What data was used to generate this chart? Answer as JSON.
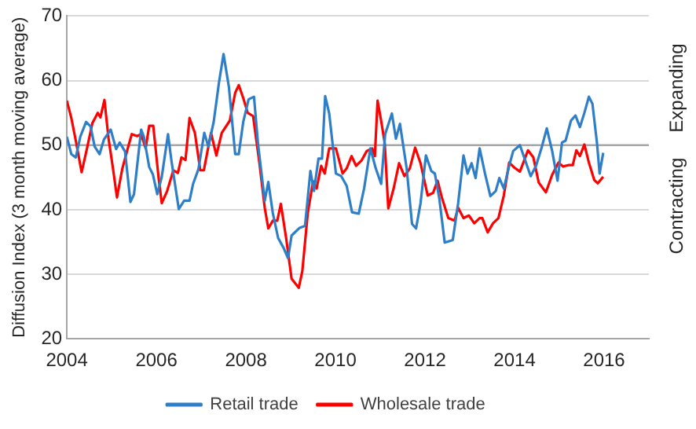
{
  "chart_data": {
    "type": "line",
    "ylabel": "Diffusion Index (3 month moving average)",
    "xlim": [
      2004,
      2017
    ],
    "xticks": [
      2004,
      2006,
      2008,
      2010,
      2012,
      2014,
      2016
    ],
    "ylim": [
      20,
      70
    ],
    "yticks": [
      20,
      30,
      40,
      50,
      60,
      70
    ],
    "grid": "y",
    "legend": "bottom",
    "marker": "none",
    "line_style": "solid",
    "ref_lines": [
      {
        "axis": "y",
        "value": 50,
        "color": "#a6a6a6"
      }
    ],
    "annotations": [
      "Expanding",
      "Contracting"
    ],
    "series": [
      {
        "name": "Retail trade",
        "color": "#2e7fc7",
        "x": [
          2004.0,
          2004.1,
          2004.2,
          2004.3,
          2004.43,
          2004.53,
          2004.62,
          2004.73,
          2004.83,
          2004.98,
          2005.1,
          2005.18,
          2005.3,
          2005.42,
          2005.5,
          2005.66,
          2005.72,
          2005.84,
          2005.92,
          2006.02,
          2006.12,
          2006.26,
          2006.34,
          2006.5,
          2006.62,
          2006.74,
          2006.82,
          2006.94,
          2007.07,
          2007.16,
          2007.28,
          2007.4,
          2007.5,
          2007.62,
          2007.76,
          2007.84,
          2007.94,
          2008.06,
          2008.18,
          2008.27,
          2008.42,
          2008.5,
          2008.6,
          2008.72,
          2008.84,
          2008.94,
          2009.02,
          2009.2,
          2009.32,
          2009.44,
          2009.52,
          2009.62,
          2009.7,
          2009.77,
          2009.86,
          2010.01,
          2010.13,
          2010.25,
          2010.37,
          2010.52,
          2010.64,
          2010.78,
          2010.9,
          2011.02,
          2011.11,
          2011.26,
          2011.35,
          2011.44,
          2011.59,
          2011.71,
          2011.8,
          2011.9,
          2012.02,
          2012.14,
          2012.22,
          2012.32,
          2012.44,
          2012.62,
          2012.74,
          2012.86,
          2012.95,
          2013.04,
          2013.13,
          2013.22,
          2013.34,
          2013.46,
          2013.58,
          2013.66,
          2013.76,
          2013.88,
          2013.97,
          2014.12,
          2014.24,
          2014.36,
          2014.48,
          2014.6,
          2014.72,
          2014.84,
          2014.96,
          2015.06,
          2015.14,
          2015.26,
          2015.36,
          2015.46,
          2015.56,
          2015.66,
          2015.74,
          2015.84,
          2015.9,
          2015.98
        ],
        "values": [
          51.3,
          48.6,
          48.1,
          51.3,
          53.6,
          52.9,
          49.8,
          48.6,
          50.9,
          52.4,
          49.4,
          50.4,
          49,
          41.2,
          42.4,
          52.4,
          51.3,
          46.6,
          45.5,
          42.4,
          45.1,
          51.7,
          47.4,
          40.1,
          41.4,
          41.4,
          44,
          46.3,
          51.9,
          49.8,
          53.6,
          59.8,
          64.1,
          59,
          48.6,
          48.6,
          53.6,
          57.1,
          57.5,
          50.2,
          41.4,
          44.3,
          39.5,
          35.6,
          34.1,
          32.5,
          36,
          37.2,
          37.5,
          46,
          42.9,
          47.9,
          47.9,
          57.6,
          54.9,
          45.6,
          45.2,
          43.7,
          39.6,
          39.4,
          43.3,
          49.5,
          46.4,
          44,
          51.7,
          54.9,
          51,
          53.3,
          46.4,
          37.8,
          37.1,
          41,
          48.4,
          46,
          45.6,
          41.7,
          34.9,
          35.3,
          41,
          48.4,
          45.6,
          47.2,
          44.9,
          49.5,
          45.6,
          42.1,
          42.9,
          44.9,
          43.3,
          46.8,
          49.1,
          50,
          47.6,
          45.2,
          46.8,
          49.5,
          52.6,
          49.1,
          44.5,
          50.4,
          50.7,
          53.8,
          54.6,
          52.8,
          55,
          57.5,
          56.4,
          50.4,
          45.6,
          48.8
        ]
      },
      {
        "name": "Wholesale trade",
        "color": "#ff0000",
        "x": [
          2004.0,
          2004.1,
          2004.2,
          2004.33,
          2004.45,
          2004.57,
          2004.69,
          2004.75,
          2004.84,
          2004.93,
          2005.03,
          2005.12,
          2005.24,
          2005.36,
          2005.45,
          2005.57,
          2005.66,
          2005.76,
          2005.84,
          2005.93,
          2006.05,
          2006.12,
          2006.24,
          2006.38,
          2006.48,
          2006.56,
          2006.65,
          2006.74,
          2006.86,
          2006.98,
          2007.06,
          2007.22,
          2007.34,
          2007.46,
          2007.64,
          2007.76,
          2007.84,
          2007.94,
          2008.04,
          2008.16,
          2008.3,
          2008.42,
          2008.5,
          2008.6,
          2008.7,
          2008.78,
          2008.9,
          2009.02,
          2009.18,
          2009.26,
          2009.38,
          2009.5,
          2009.58,
          2009.68,
          2009.76,
          2009.86,
          2010.01,
          2010.16,
          2010.25,
          2010.36,
          2010.46,
          2010.58,
          2010.7,
          2010.82,
          2010.88,
          2010.94,
          2011.02,
          2011.1,
          2011.18,
          2011.3,
          2011.42,
          2011.54,
          2011.66,
          2011.78,
          2011.9,
          2012.06,
          2012.18,
          2012.28,
          2012.38,
          2012.52,
          2012.66,
          2012.74,
          2012.86,
          2012.98,
          2013.1,
          2013.22,
          2013.28,
          2013.4,
          2013.52,
          2013.64,
          2013.76,
          2013.88,
          2014.0,
          2014.12,
          2014.3,
          2014.42,
          2014.54,
          2014.7,
          2014.84,
          2014.98,
          2015.08,
          2015.2,
          2015.3,
          2015.38,
          2015.46,
          2015.56,
          2015.66,
          2015.78,
          2015.86,
          2015.98
        ],
        "values": [
          56.9,
          54.2,
          50.7,
          45.8,
          49.5,
          53.4,
          55,
          54.3,
          57,
          51.1,
          46.4,
          41.9,
          46.4,
          49.5,
          51.7,
          51.4,
          51.7,
          49.5,
          53,
          53,
          44.9,
          41,
          42.9,
          46.1,
          45.7,
          48.1,
          47.7,
          54.2,
          51.9,
          46.1,
          46.1,
          51.9,
          48.4,
          51.9,
          53.8,
          58.1,
          59.3,
          57.3,
          55,
          54.5,
          47.3,
          40.3,
          37.1,
          38.3,
          38.3,
          40.9,
          35.5,
          29.3,
          27.9,
          30.5,
          39.4,
          44.4,
          43.3,
          46.8,
          45.6,
          49.5,
          49.5,
          45.6,
          46.4,
          48.3,
          46.8,
          47.6,
          49.1,
          49.5,
          48.3,
          56.9,
          53.8,
          50.3,
          40.2,
          43.3,
          47.2,
          45.2,
          46.4,
          49.6,
          47.2,
          42.2,
          42.6,
          44.5,
          41.8,
          38.7,
          38.3,
          40.3,
          38.7,
          39.1,
          37.9,
          38.7,
          38.7,
          36.5,
          37.9,
          38.7,
          42.2,
          47.3,
          46.5,
          45.9,
          49.2,
          48.1,
          44.2,
          42.7,
          45.4,
          47.3,
          46.7,
          46.9,
          46.9,
          49.2,
          48.3,
          50.1,
          47.3,
          44.6,
          44.1,
          45.1
        ]
      }
    ]
  }
}
